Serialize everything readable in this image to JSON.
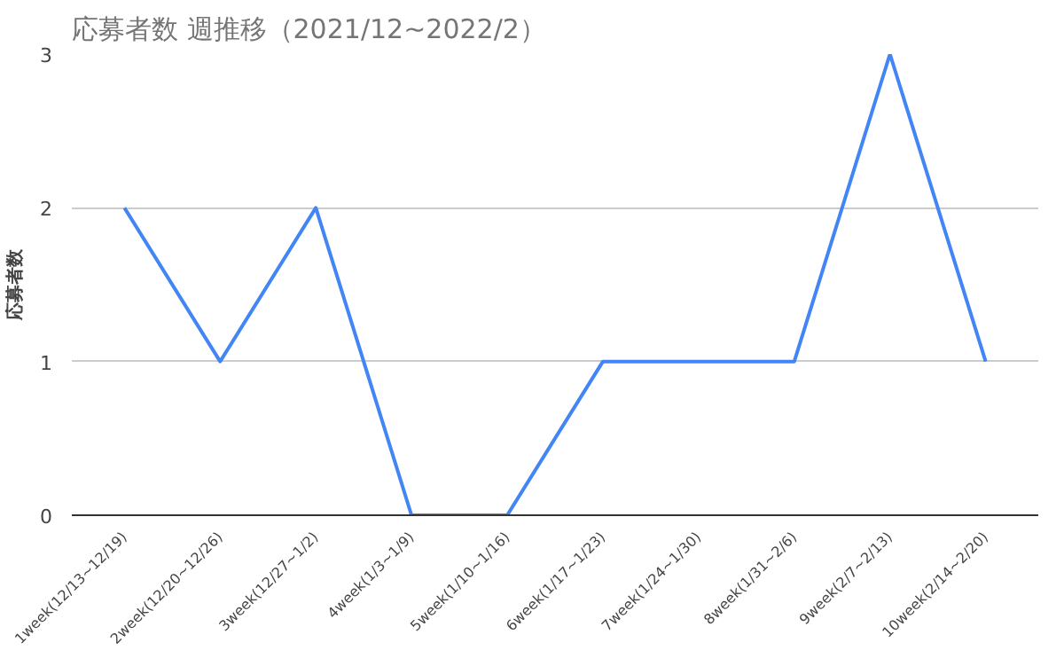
{
  "chart_data": {
    "type": "line",
    "title": "応募者数  週推移（2021/12~2022/2）",
    "ylabel": "応募者数",
    "categories": [
      "1week(12/13~12/19)",
      "2week(12/20~12/26)",
      "3week(12/27~1/2)",
      "4week(1/3~1/9)",
      "5week(1/10~1/16)",
      "6week(1/17~1/23)",
      "7week(1/24~1/30)",
      "8week(1/31~2/6)",
      "9week(2/7~2/13)",
      "10week(2/14~2/20)"
    ],
    "series": [
      {
        "color": "#4285f4",
        "values": [
          2,
          1,
          2,
          0,
          0,
          1,
          1,
          1,
          3,
          1
        ]
      }
    ],
    "ylim": [
      0,
      3
    ],
    "yticks": [
      0,
      1,
      2,
      3
    ],
    "grid": "y",
    "marker": "none",
    "line_style": "solid"
  }
}
